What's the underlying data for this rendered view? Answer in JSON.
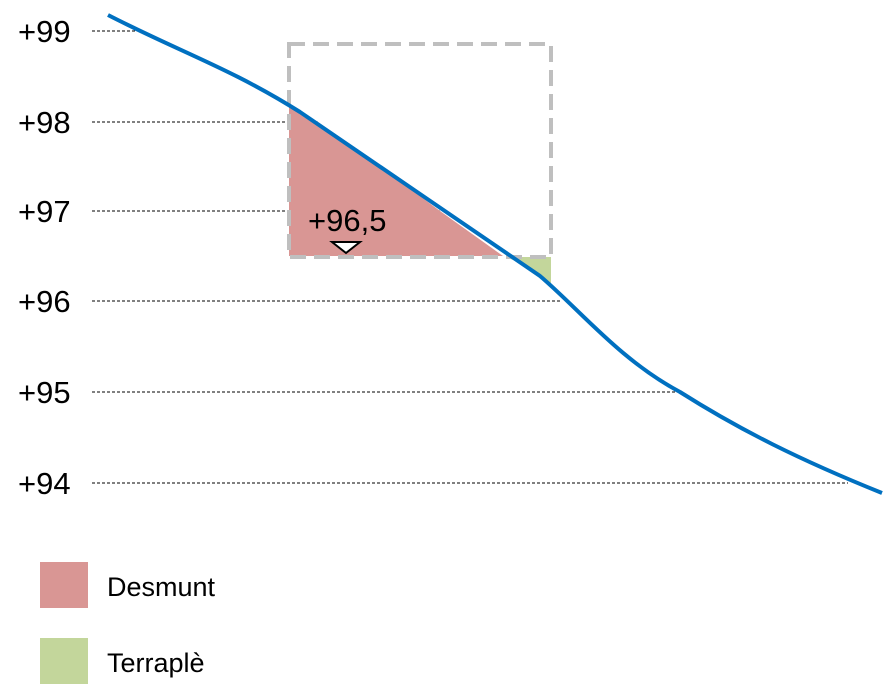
{
  "levels": [
    {
      "label": "+99"
    },
    {
      "label": "+98"
    },
    {
      "label": "+97"
    },
    {
      "label": "+96"
    },
    {
      "label": "+95"
    },
    {
      "label": "+94"
    }
  ],
  "platform": {
    "label": "+96,5"
  },
  "legend": [
    {
      "label": "Desmunt",
      "color": "#d99694"
    },
    {
      "label": "Terraplè",
      "color": "#c3d69b"
    }
  ],
  "colors": {
    "terrain": "#0070c0",
    "box": "#bfbfbf",
    "guide": "#000000"
  }
}
